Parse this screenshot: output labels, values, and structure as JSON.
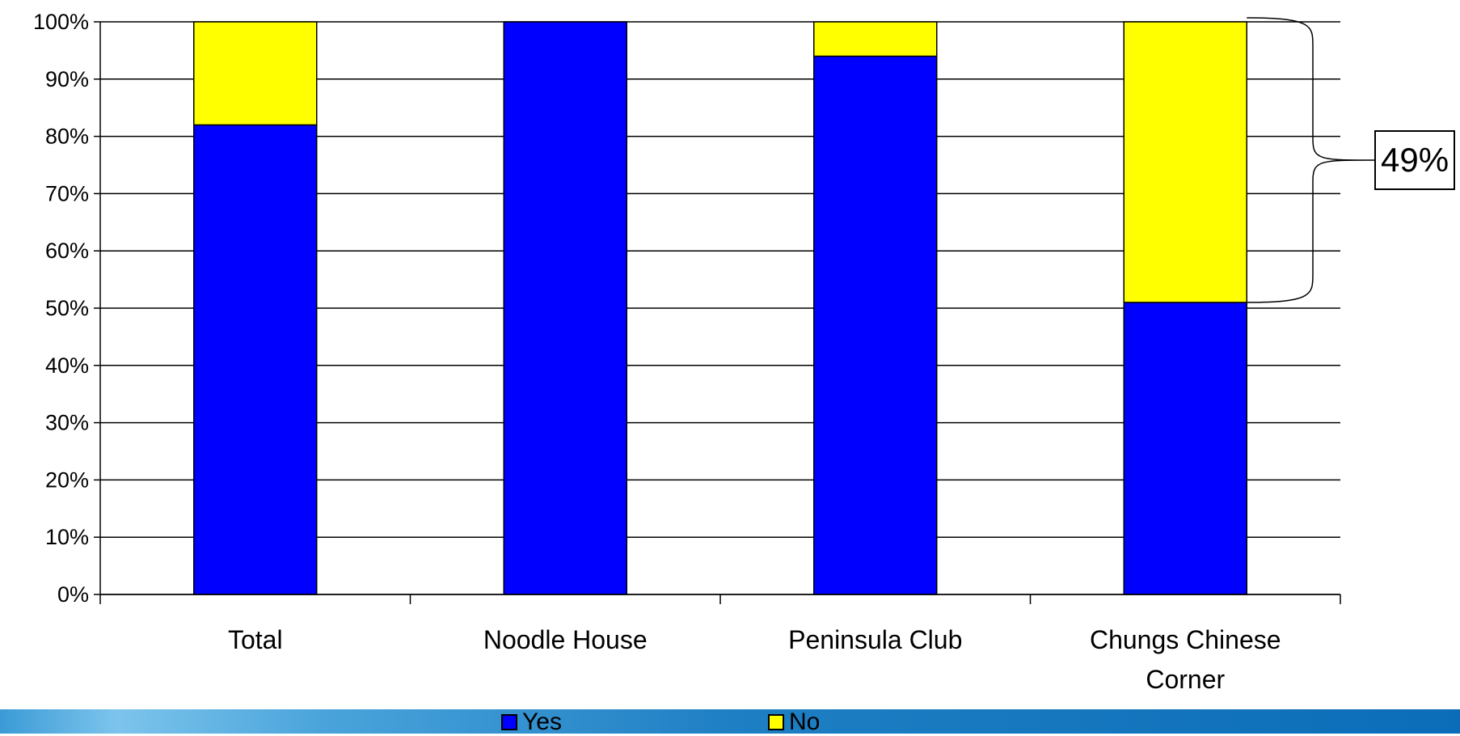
{
  "chart_data": {
    "type": "bar",
    "stacked": true,
    "normalized": true,
    "categories": [
      "Total",
      "Noodle House",
      "Peninsula Club",
      "Chungs Chinese Corner"
    ],
    "category_lines": [
      [
        "Total"
      ],
      [
        "Noodle House"
      ],
      [
        "Peninsula Club"
      ],
      [
        "Chungs Chinese",
        "Corner"
      ]
    ],
    "series": [
      {
        "name": "Yes",
        "values": [
          82,
          100,
          94,
          51
        ],
        "color": "#0000ff"
      },
      {
        "name": "No",
        "values": [
          18,
          0,
          6,
          49
        ],
        "color": "#ffff00"
      }
    ],
    "ylim": [
      0,
      100
    ],
    "yticks": [
      0,
      10,
      20,
      30,
      40,
      50,
      60,
      70,
      80,
      90,
      100
    ],
    "ytick_labels": [
      "0%",
      "10%",
      "20%",
      "30%",
      "40%",
      "50%",
      "60%",
      "70%",
      "80%",
      "90%",
      "100%"
    ],
    "grid": true,
    "legend_position": "bottom",
    "annotation": {
      "text": "49%",
      "category": "Chungs Chinese Corner",
      "series": "No"
    }
  },
  "legend": {
    "yes_label": "Yes",
    "no_label": "No"
  },
  "annotation_text": "49%"
}
